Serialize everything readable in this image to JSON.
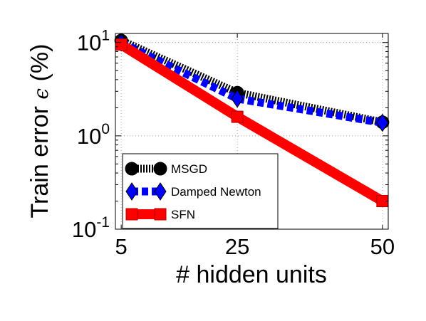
{
  "chart_data": {
    "type": "line",
    "xlabel": "# hidden units",
    "ylabel": "Train error",
    "ylabel_symbol": "ϵ",
    "ylabel_unit": "(%)",
    "yscale": "log",
    "xlim": [
      4,
      51
    ],
    "ylim": [
      0.1,
      12.5
    ],
    "x_ticks": [
      {
        "value": 5,
        "label": "5"
      },
      {
        "value": 25,
        "label": "25"
      },
      {
        "value": 50,
        "label": "50"
      }
    ],
    "y_ticks": [
      {
        "value": 10,
        "base": "10",
        "exp": "1"
      },
      {
        "value": 1,
        "base": "10",
        "exp": "0"
      },
      {
        "value": 0.1,
        "base": "10",
        "exp": "-1"
      }
    ],
    "grid": true,
    "legend_position": "lower-left",
    "x": [
      5,
      25,
      50
    ],
    "series": [
      {
        "name": "MSGD",
        "values": [
          10.5,
          2.9,
          1.4
        ],
        "color": "#000000",
        "marker": "circle",
        "line_style": "dotted"
      },
      {
        "name": "Damped Newton",
        "values": [
          10.0,
          2.5,
          1.38
        ],
        "color": "#0000ff",
        "marker": "diamond",
        "line_style": "dashed"
      },
      {
        "name": "SFN",
        "values": [
          9.5,
          1.6,
          0.2
        ],
        "color": "#ff0000",
        "marker": "square",
        "line_style": "solid"
      }
    ]
  }
}
